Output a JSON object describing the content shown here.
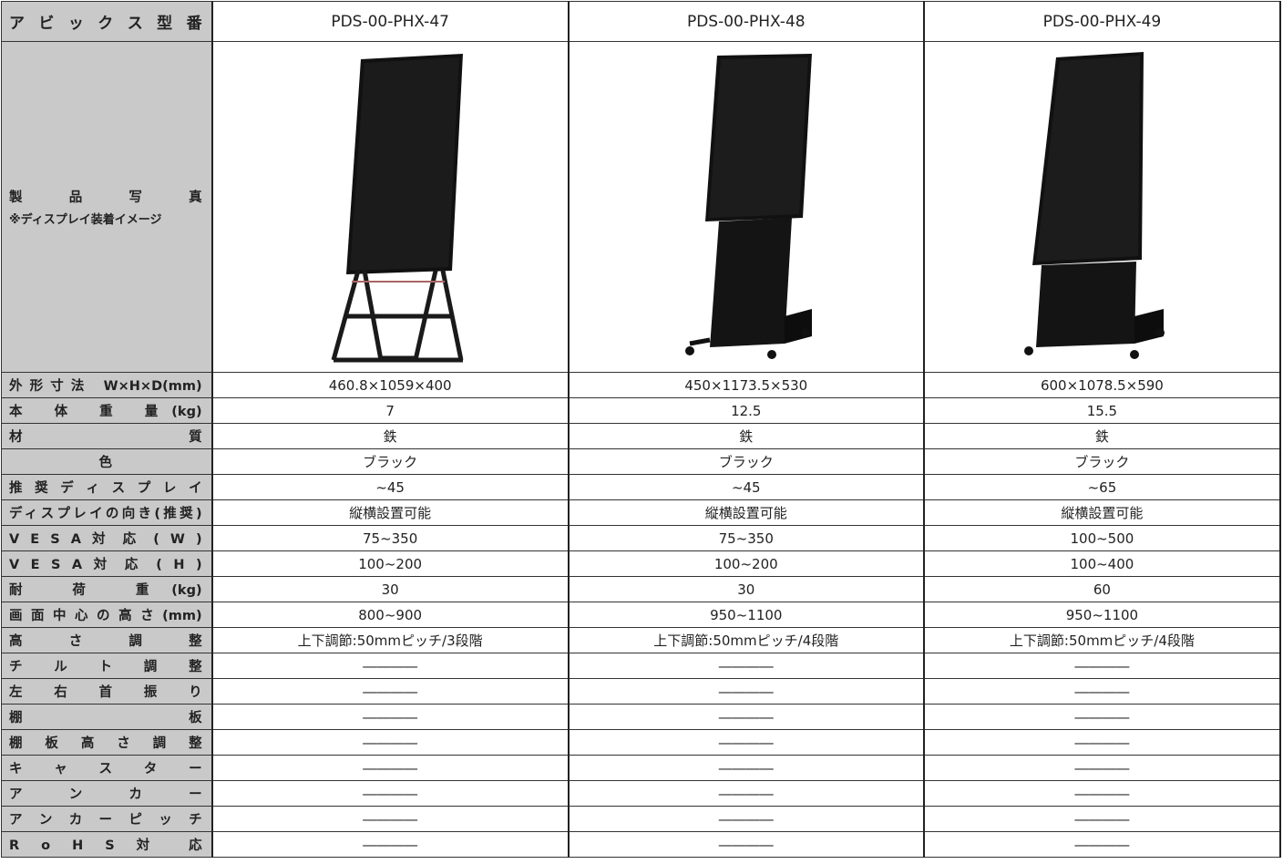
{
  "table": {
    "header": [
      "ア ビ ッ ク ス 型 番",
      "PDS-00-PHX-47",
      "PDS-00-PHX-48",
      "PDS-00-PHX-49"
    ],
    "photo_label": "製 品 写 真",
    "photo_note": "※ディスプレイ装着イメージ",
    "rows": [
      [
        "外形寸法 W×H×D(mm)",
        "460.8×1059×400",
        "450×1173.5×530",
        "600×1078.5×590"
      ],
      [
        "本 体 重 量(kg)",
        "7",
        "12.5",
        "15.5"
      ],
      [
        "材 質",
        "鉄",
        "鉄",
        "鉄"
      ],
      [
        "色",
        "ブラック",
        "ブラック",
        "ブラック"
      ],
      [
        "推 奨 デ ィ ス プ レ イ",
        "~45",
        "~45",
        "~65"
      ],
      [
        "ディスプレイの向き(推奨)",
        "縦横設置可能",
        "縦横設置可能",
        "縦横設置可能"
      ],
      [
        "V E S A 対 応 ( W )",
        "75~350",
        "75~350",
        "100~500"
      ],
      [
        "V E S A 対 応 ( H )",
        "100~200",
        "100~200",
        "100~400"
      ],
      [
        "耐 荷 重(kg)",
        "30",
        "30",
        "60"
      ],
      [
        "画面中心の高さ(mm)",
        "800~900",
        "950~1100",
        "950~1100"
      ],
      [
        "高 さ 調 整",
        "上下調節:50mmピッチ/3段階",
        "上下調節:50mmピッチ/4段階",
        "上下調節:50mmピッチ/4段階"
      ],
      [
        "チ ル ト 調 整",
        "――――",
        "――――",
        "――――"
      ],
      [
        "左 右 首 振 り",
        "――――",
        "――――",
        "――――"
      ],
      [
        "棚 板",
        "――――",
        "――――",
        "――――"
      ],
      [
        "棚 板 高 さ 調 整",
        "――――",
        "――――",
        "――――"
      ],
      [
        "キ ャ ス タ ー",
        "――――",
        "――――",
        "――――"
      ],
      [
        "ア ン カ ー",
        "――――",
        "――――",
        "――――"
      ],
      [
        "ア ン カ ー ピ ッ チ",
        "――――",
        "――――",
        "――――"
      ],
      [
        "R o H S 対 応",
        "――――",
        "――――",
        "――――"
      ]
    ]
  }
}
